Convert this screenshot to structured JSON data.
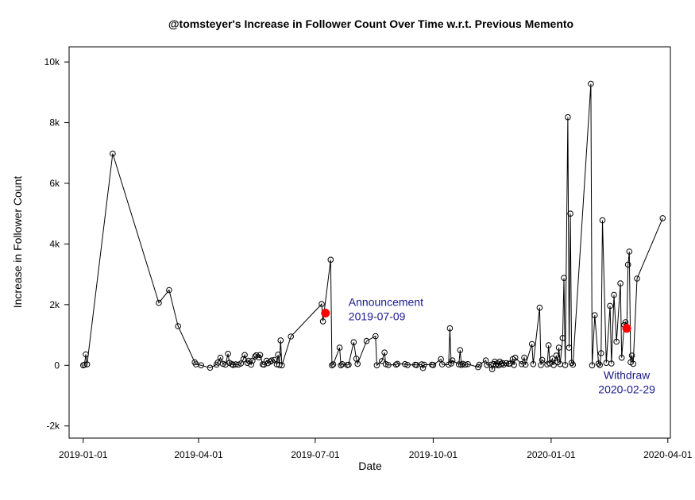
{
  "chart_data": {
    "type": "line",
    "title": "@tomsteyer's Increase in Follower Count Over Time w.r.t. Previous Memento",
    "xlabel": "Date",
    "ylabel": "Increase in Follower Count",
    "x_range": [
      "2018-12-21",
      "2020-04-03"
    ],
    "ylim": [
      -2400,
      10500
    ],
    "x_ticks": [
      {
        "date": "2019-01-01",
        "label": "2019-01-01"
      },
      {
        "date": "2019-04-01",
        "label": "2019-04-01"
      },
      {
        "date": "2019-07-01",
        "label": "2019-07-01"
      },
      {
        "date": "2019-10-01",
        "label": "2019-10-01"
      },
      {
        "date": "2020-01-01",
        "label": "2020-01-01"
      },
      {
        "date": "2020-04-01",
        "label": "2020-04-01"
      }
    ],
    "y_ticks": [
      {
        "value": -2000,
        "label": "-2k"
      },
      {
        "value": 0,
        "label": "0"
      },
      {
        "value": 2000,
        "label": "2k"
      },
      {
        "value": 4000,
        "label": "4k"
      },
      {
        "value": 6000,
        "label": "6k"
      },
      {
        "value": 8000,
        "label": "8k"
      },
      {
        "value": 10000,
        "label": "10k"
      }
    ],
    "grid": false,
    "series": [
      {
        "color": "#000000",
        "marker": "open-circle",
        "points": [
          [
            "2019-01-01",
            0
          ],
          [
            "2019-01-02",
            20
          ],
          [
            "2019-01-03",
            360
          ],
          [
            "2019-01-04",
            30
          ],
          [
            "2019-01-24",
            6980
          ],
          [
            "2019-03-01",
            2060
          ],
          [
            "2019-03-09",
            2480
          ],
          [
            "2019-03-16",
            1290
          ],
          [
            "2019-03-29",
            100
          ],
          [
            "2019-03-30",
            30
          ],
          [
            "2019-04-03",
            0
          ],
          [
            "2019-04-10",
            -80
          ],
          [
            "2019-04-15",
            20
          ],
          [
            "2019-04-16",
            90
          ],
          [
            "2019-04-18",
            250
          ],
          [
            "2019-04-20",
            50
          ],
          [
            "2019-04-22",
            20
          ],
          [
            "2019-04-24",
            380
          ],
          [
            "2019-04-25",
            80
          ],
          [
            "2019-04-27",
            40
          ],
          [
            "2019-04-28",
            10
          ],
          [
            "2019-04-30",
            30
          ],
          [
            "2019-05-02",
            20
          ],
          [
            "2019-05-04",
            60
          ],
          [
            "2019-05-06",
            200
          ],
          [
            "2019-05-07",
            340
          ],
          [
            "2019-05-09",
            80
          ],
          [
            "2019-05-10",
            150
          ],
          [
            "2019-05-12",
            20
          ],
          [
            "2019-05-13",
            150
          ],
          [
            "2019-05-15",
            290
          ],
          [
            "2019-05-16",
            330
          ],
          [
            "2019-05-18",
            260
          ],
          [
            "2019-05-19",
            340
          ],
          [
            "2019-05-21",
            30
          ],
          [
            "2019-05-22",
            20
          ],
          [
            "2019-05-24",
            150
          ],
          [
            "2019-05-25",
            70
          ],
          [
            "2019-05-27",
            120
          ],
          [
            "2019-05-28",
            160
          ],
          [
            "2019-05-30",
            180
          ],
          [
            "2019-06-01",
            30
          ],
          [
            "2019-06-02",
            350
          ],
          [
            "2019-06-03",
            10
          ],
          [
            "2019-06-04",
            820
          ],
          [
            "2019-06-05",
            0
          ],
          [
            "2019-06-12",
            950
          ],
          [
            "2019-07-06",
            2020
          ],
          [
            "2019-07-07",
            1450
          ],
          [
            "2019-07-13",
            3480
          ],
          [
            "2019-07-14",
            0
          ],
          [
            "2019-07-15",
            30
          ],
          [
            "2019-07-20",
            580
          ],
          [
            "2019-07-21",
            0
          ],
          [
            "2019-07-22",
            40
          ],
          [
            "2019-07-26",
            10
          ],
          [
            "2019-07-27",
            20
          ],
          [
            "2019-07-31",
            760
          ],
          [
            "2019-08-02",
            220
          ],
          [
            "2019-08-03",
            50
          ],
          [
            "2019-08-10",
            800
          ],
          [
            "2019-08-17",
            960
          ],
          [
            "2019-08-18",
            0
          ],
          [
            "2019-08-22",
            140
          ],
          [
            "2019-08-24",
            420
          ],
          [
            "2019-08-25",
            40
          ],
          [
            "2019-08-27",
            10
          ],
          [
            "2019-09-02",
            20
          ],
          [
            "2019-09-03",
            50
          ],
          [
            "2019-09-09",
            40
          ],
          [
            "2019-09-11",
            10
          ],
          [
            "2019-09-17",
            20
          ],
          [
            "2019-09-18",
            10
          ],
          [
            "2019-09-22",
            30
          ],
          [
            "2019-09-23",
            -90
          ],
          [
            "2019-09-24",
            20
          ],
          [
            "2019-09-30",
            20
          ],
          [
            "2019-10-01",
            10
          ],
          [
            "2019-10-07",
            200
          ],
          [
            "2019-10-08",
            30
          ],
          [
            "2019-10-13",
            20
          ],
          [
            "2019-10-14",
            1220
          ],
          [
            "2019-10-15",
            60
          ],
          [
            "2019-10-16",
            160
          ],
          [
            "2019-10-21",
            30
          ],
          [
            "2019-10-22",
            500
          ],
          [
            "2019-10-23",
            10
          ],
          [
            "2019-10-24",
            50
          ],
          [
            "2019-10-26",
            20
          ],
          [
            "2019-10-28",
            40
          ],
          [
            "2019-11-05",
            -60
          ],
          [
            "2019-11-06",
            20
          ],
          [
            "2019-11-11",
            160
          ],
          [
            "2019-11-12",
            10
          ],
          [
            "2019-11-15",
            20
          ],
          [
            "2019-11-16",
            -130
          ],
          [
            "2019-11-17",
            40
          ],
          [
            "2019-11-18",
            120
          ],
          [
            "2019-11-19",
            10
          ],
          [
            "2019-11-20",
            60
          ],
          [
            "2019-11-21",
            0
          ],
          [
            "2019-11-22",
            120
          ],
          [
            "2019-11-23",
            30
          ],
          [
            "2019-11-24",
            70
          ],
          [
            "2019-11-25",
            20
          ],
          [
            "2019-11-27",
            70
          ],
          [
            "2019-11-29",
            50
          ],
          [
            "2019-11-30",
            60
          ],
          [
            "2019-12-02",
            200
          ],
          [
            "2019-12-03",
            10
          ],
          [
            "2019-12-04",
            250
          ],
          [
            "2019-12-09",
            40
          ],
          [
            "2019-12-11",
            250
          ],
          [
            "2019-12-12",
            20
          ],
          [
            "2019-12-17",
            700
          ],
          [
            "2019-12-18",
            40
          ],
          [
            "2019-12-23",
            1900
          ],
          [
            "2019-12-24",
            10
          ],
          [
            "2019-12-25",
            180
          ],
          [
            "2019-12-29",
            30
          ],
          [
            "2019-12-30",
            660
          ],
          [
            "2019-12-31",
            60
          ],
          [
            "2020-01-02",
            220
          ],
          [
            "2020-01-03",
            10
          ],
          [
            "2020-01-05",
            320
          ],
          [
            "2020-01-06",
            100
          ],
          [
            "2020-01-07",
            580
          ],
          [
            "2020-01-08",
            40
          ],
          [
            "2020-01-10",
            900
          ],
          [
            "2020-01-11",
            2880
          ],
          [
            "2020-01-12",
            10
          ],
          [
            "2020-01-14",
            8180
          ],
          [
            "2020-01-15",
            580
          ],
          [
            "2020-01-16",
            5000
          ],
          [
            "2020-01-17",
            80
          ],
          [
            "2020-01-18",
            20
          ],
          [
            "2020-02-01",
            9280
          ],
          [
            "2020-02-02",
            0
          ],
          [
            "2020-02-04",
            1650
          ],
          [
            "2020-02-07",
            60
          ],
          [
            "2020-02-08",
            10
          ],
          [
            "2020-02-09",
            400
          ],
          [
            "2020-02-10",
            4780
          ],
          [
            "2020-02-13",
            80
          ],
          [
            "2020-02-16",
            1960
          ],
          [
            "2020-02-17",
            60
          ],
          [
            "2020-02-19",
            2320
          ],
          [
            "2020-02-21",
            780
          ],
          [
            "2020-02-24",
            2700
          ],
          [
            "2020-02-25",
            250
          ],
          [
            "2020-02-27",
            1330
          ],
          [
            "2020-02-28",
            1420
          ],
          [
            "2020-02-29",
            1230
          ],
          [
            "2020-03-01",
            3320
          ],
          [
            "2020-03-02",
            3750
          ],
          [
            "2020-03-03",
            100
          ],
          [
            "2020-03-04",
            320
          ],
          [
            "2020-03-05",
            50
          ],
          [
            "2020-03-08",
            2860
          ],
          [
            "2020-03-28",
            4850
          ]
        ]
      }
    ],
    "highlights": [
      {
        "date": "2019-07-09",
        "value": 1720,
        "color": "#ff0000",
        "line1": "Announcement",
        "line2": "2019-07-09",
        "label_side": "upper-right"
      },
      {
        "date": "2020-02-29",
        "value": 1220,
        "color": "#ff0000",
        "line1": "Withdraw",
        "line2": "2020-02-29",
        "label_side": "below"
      }
    ],
    "annotation_color": "#1a1a8c"
  }
}
